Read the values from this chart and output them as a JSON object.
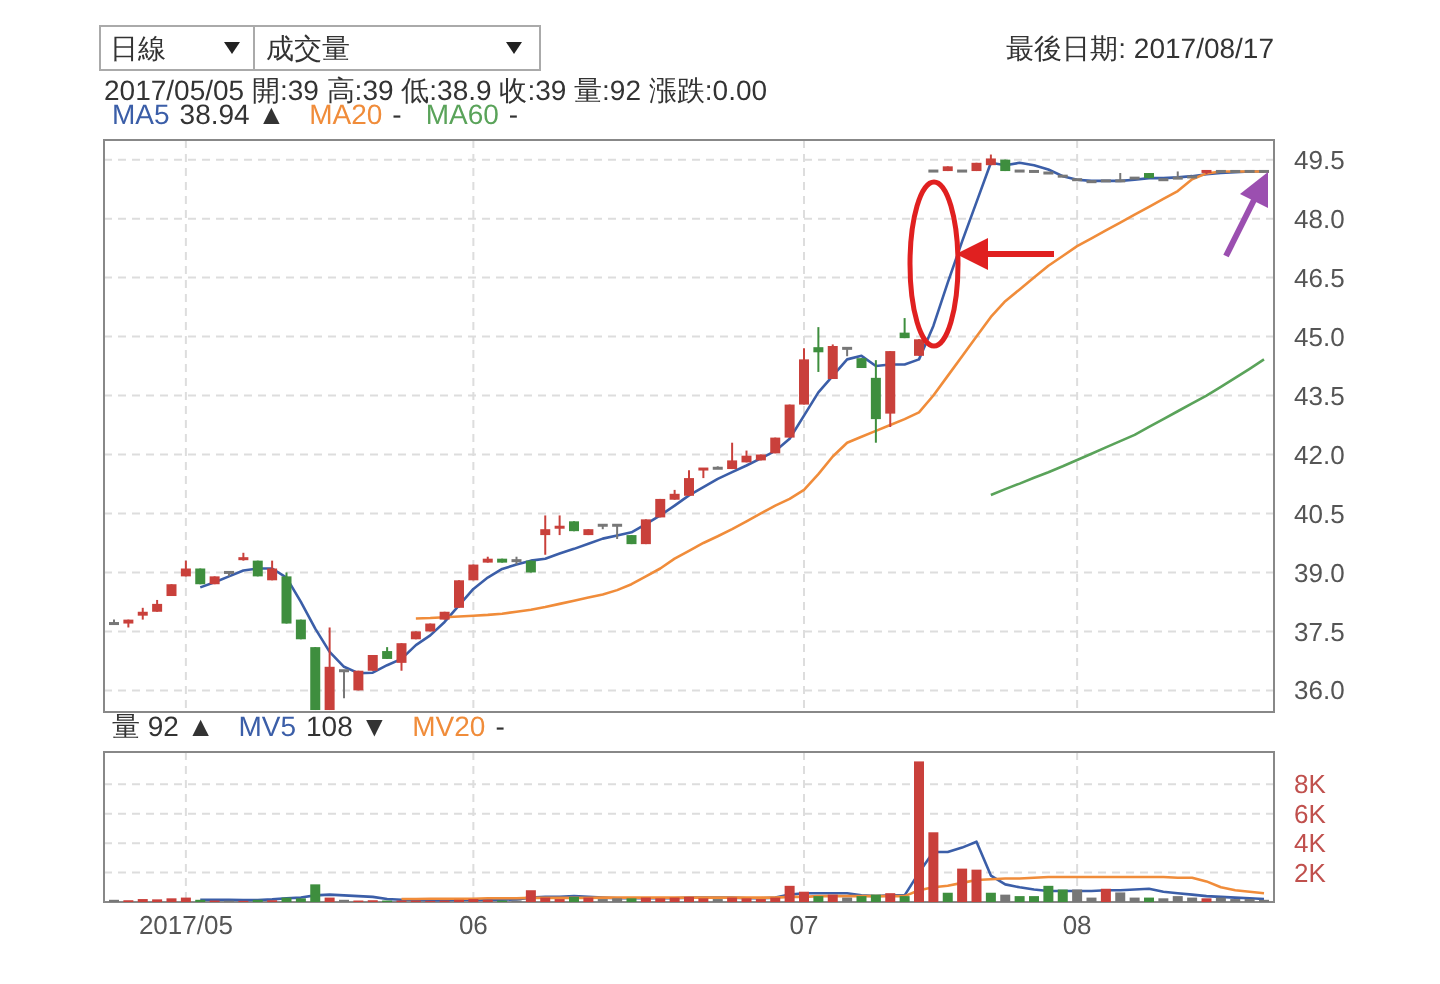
{
  "chart_data": [
    {
      "type": "candlestick",
      "categories": [
        null,
        null,
        null,
        null,
        null,
        "2017/05",
        null,
        null,
        null,
        null,
        null,
        null,
        null,
        null,
        null,
        null,
        null,
        null,
        null,
        null,
        null,
        null,
        null,
        null,
        null,
        "06",
        null,
        null,
        null,
        null,
        null,
        null,
        null,
        null,
        null,
        null,
        null,
        null,
        null,
        null,
        null,
        null,
        null,
        null,
        null,
        null,
        null,
        null,
        "07",
        null,
        null,
        null,
        null,
        null,
        null,
        null,
        null,
        null,
        null,
        null,
        null,
        null,
        null,
        null,
        null,
        null,
        null,
        "08",
        null,
        null,
        null,
        null,
        null,
        null,
        null,
        null,
        null,
        null,
        null,
        null,
        null
      ],
      "ohlc": [
        [
          37.7,
          37.8,
          37.7,
          37.7
        ],
        [
          37.7,
          37.8,
          37.6,
          37.8
        ],
        [
          37.9,
          38.1,
          37.8,
          38.0
        ],
        [
          38.0,
          38.3,
          38.0,
          38.2
        ],
        [
          38.4,
          38.7,
          38.4,
          38.7
        ],
        [
          38.9,
          39.3,
          38.9,
          39.1
        ],
        [
          39.1,
          39.1,
          38.7,
          38.7
        ],
        [
          38.7,
          38.9,
          38.7,
          38.9
        ],
        [
          39.0,
          39.0,
          38.9,
          39.0
        ],
        [
          39.3,
          39.5,
          39.3,
          39.35
        ],
        [
          39.3,
          39.3,
          38.9,
          38.9
        ],
        [
          38.8,
          39.3,
          38.8,
          39.1
        ],
        [
          38.9,
          39.0,
          37.7,
          37.7
        ],
        [
          37.8,
          37.8,
          37.3,
          37.3
        ],
        [
          37.1,
          37.1,
          35.5,
          35.5
        ],
        [
          35.5,
          37.6,
          35.5,
          36.6
        ],
        [
          36.5,
          36.5,
          35.8,
          36.5
        ],
        [
          36.0,
          36.5,
          36.0,
          36.5
        ],
        [
          36.5,
          36.9,
          36.5,
          36.9
        ],
        [
          37.0,
          37.1,
          36.8,
          36.8
        ],
        [
          36.7,
          37.2,
          36.5,
          37.2
        ],
        [
          37.3,
          37.5,
          37.3,
          37.5
        ],
        [
          37.5,
          37.7,
          37.5,
          37.7
        ],
        [
          37.8,
          38.0,
          37.8,
          38.0
        ],
        [
          38.1,
          38.8,
          38.1,
          38.8
        ],
        [
          38.8,
          39.2,
          38.8,
          39.2
        ],
        [
          39.25,
          39.4,
          39.25,
          39.35
        ],
        [
          39.35,
          39.35,
          39.25,
          39.25
        ],
        [
          39.3,
          39.4,
          39.2,
          39.3
        ],
        [
          39.3,
          39.3,
          39.0,
          39.0
        ],
        [
          39.95,
          40.45,
          39.45,
          40.1
        ],
        [
          40.1,
          40.45,
          39.95,
          40.15
        ],
        [
          40.3,
          40.3,
          40.05,
          40.05
        ],
        [
          39.95,
          40.1,
          39.95,
          40.1
        ],
        [
          40.2,
          40.2,
          40.1,
          40.2
        ],
        [
          40.2,
          40.2,
          39.85,
          40.2
        ],
        [
          39.95,
          39.95,
          39.72,
          39.72
        ],
        [
          39.72,
          40.35,
          39.72,
          40.35
        ],
        [
          40.4,
          40.87,
          40.4,
          40.87
        ],
        [
          40.85,
          41.1,
          40.85,
          41.0
        ],
        [
          40.95,
          41.6,
          40.95,
          41.4
        ],
        [
          41.6,
          41.65,
          41.4,
          41.63
        ],
        [
          41.65,
          41.7,
          41.65,
          41.65
        ],
        [
          41.63,
          42.3,
          41.63,
          41.85
        ],
        [
          41.8,
          42.1,
          41.8,
          41.97
        ],
        [
          41.85,
          42.0,
          41.85,
          42.0
        ],
        [
          42.03,
          42.43,
          42.03,
          42.43
        ],
        [
          42.43,
          43.27,
          42.43,
          43.27
        ],
        [
          43.27,
          44.7,
          43.27,
          44.42
        ],
        [
          44.73,
          45.24,
          44.1,
          44.6
        ],
        [
          43.92,
          44.8,
          43.92,
          44.76
        ],
        [
          44.7,
          44.7,
          44.5,
          44.7
        ],
        [
          44.45,
          44.45,
          44.2,
          44.2
        ],
        [
          43.95,
          44.4,
          42.3,
          42.9
        ],
        [
          43.04,
          44.63,
          42.7,
          44.63
        ],
        [
          45.1,
          45.47,
          44.96,
          44.96
        ],
        [
          44.51,
          44.93,
          44.51,
          44.93
        ],
        [
          49.21,
          49.21,
          49.21,
          49.21
        ],
        [
          49.21,
          49.33,
          49.21,
          49.33
        ],
        [
          49.21,
          49.21,
          49.21,
          49.21
        ],
        [
          49.21,
          49.42,
          49.21,
          49.42
        ],
        [
          49.36,
          49.63,
          49.36,
          49.53
        ],
        [
          49.5,
          49.5,
          49.21,
          49.21
        ],
        [
          49.21,
          49.21,
          49.21,
          49.21
        ],
        [
          49.2,
          49.2,
          49.2,
          49.2
        ],
        [
          49.16,
          49.16,
          49.16,
          49.16
        ],
        [
          49.08,
          49.08,
          49.08,
          49.08
        ],
        [
          48.99,
          48.99,
          48.99,
          48.99
        ],
        [
          48.94,
          48.94,
          48.94,
          48.94
        ],
        [
          48.96,
          48.96,
          48.96,
          48.96
        ],
        [
          48.96,
          49.16,
          48.96,
          48.96
        ],
        [
          49.03,
          49.03,
          49.03,
          49.03
        ],
        [
          49.16,
          49.16,
          49.03,
          49.03
        ],
        [
          48.99,
          48.99,
          48.99,
          48.99
        ],
        [
          49.03,
          49.2,
          49.03,
          49.03
        ],
        [
          49.06,
          49.06,
          49.06,
          49.06
        ],
        [
          49.13,
          49.2,
          49.13,
          49.2
        ],
        [
          49.2,
          49.2,
          49.2,
          49.2
        ],
        [
          49.2,
          49.2,
          49.2,
          49.2
        ],
        [
          49.2,
          49.2,
          49.2,
          49.2
        ],
        [
          49.2,
          49.2,
          49.2,
          49.2
        ]
      ],
      "colors": [
        "#777777",
        "#c9403b",
        "#c9403b",
        "#c9403b",
        "#c9403b",
        "#c9403b",
        "#3e8e3e",
        "#c9403b",
        "#777777",
        "#c9403b",
        "#3e8e3e",
        "#c9403b",
        "#3e8e3e",
        "#3e8e3e",
        "#3e8e3e",
        "#c9403b",
        "#777777",
        "#c9403b",
        "#c9403b",
        "#3e8e3e",
        "#c9403b",
        "#c9403b",
        "#c9403b",
        "#c9403b",
        "#c9403b",
        "#c9403b",
        "#c9403b",
        "#3e8e3e",
        "#777777",
        "#3e8e3e",
        "#c9403b",
        "#c9403b",
        "#3e8e3e",
        "#c9403b",
        "#777777",
        "#777777",
        "#3e8e3e",
        "#c9403b",
        "#c9403b",
        "#c9403b",
        "#c9403b",
        "#c9403b",
        "#777777",
        "#c9403b",
        "#c9403b",
        "#c9403b",
        "#c9403b",
        "#c9403b",
        "#c9403b",
        "#3e8e3e",
        "#c9403b",
        "#777777",
        "#3e8e3e",
        "#3e8e3e",
        "#c9403b",
        "#3e8e3e",
        "#c9403b",
        "#777777",
        "#c9403b",
        "#777777",
        "#c9403b",
        "#c9403b",
        "#3e8e3e",
        "#777777",
        "#777777",
        "#777777",
        "#777777",
        "#777777",
        "#777777",
        "#777777",
        "#777777",
        "#777777",
        "#3e8e3e",
        "#777777",
        "#777777",
        "#777777",
        "#c9403b",
        "#777777",
        "#777777",
        "#777777",
        "#777777"
      ],
      "series": [
        {
          "name": "MA5",
          "type": "line",
          "color": "#3b5ea8",
          "values": [
            null,
            null,
            null,
            null,
            null,
            null,
            38.62,
            38.75,
            38.9,
            39.05,
            39.1,
            39.1,
            38.87,
            38.25,
            37.57,
            36.98,
            36.6,
            36.44,
            36.45,
            36.64,
            36.8,
            37.15,
            37.4,
            37.74,
            38.16,
            38.58,
            38.87,
            39.09,
            39.2,
            39.3,
            39.35,
            39.48,
            39.6,
            39.73,
            39.86,
            39.94,
            40.02,
            40.23,
            40.45,
            40.7,
            40.96,
            41.17,
            41.38,
            41.55,
            41.72,
            41.9,
            42.09,
            42.4,
            42.99,
            43.58,
            44.0,
            44.42,
            44.51,
            44.25,
            44.29,
            44.29,
            44.42,
            45.27,
            46.37,
            47.42,
            48.42,
            49.42,
            49.36,
            49.42,
            49.36,
            49.25,
            49.08,
            48.99,
            48.96,
            48.96,
            48.96,
            48.99,
            49.03,
            49.03,
            49.05,
            49.08,
            49.13,
            49.16,
            49.18,
            49.2,
            49.2
          ]
        },
        {
          "name": "MA20",
          "type": "line",
          "color": "#f08c3a",
          "values": [
            null,
            null,
            null,
            null,
            null,
            null,
            null,
            null,
            null,
            null,
            null,
            null,
            null,
            null,
            null,
            null,
            null,
            null,
            null,
            null,
            null,
            37.83,
            37.84,
            37.86,
            37.88,
            37.9,
            37.92,
            37.95,
            38.0,
            38.05,
            38.12,
            38.2,
            38.28,
            38.36,
            38.44,
            38.55,
            38.7,
            38.9,
            39.1,
            39.35,
            39.55,
            39.75,
            39.92,
            40.1,
            40.3,
            40.5,
            40.7,
            40.87,
            41.1,
            41.5,
            41.95,
            42.3,
            42.45,
            42.6,
            42.75,
            42.9,
            43.07,
            43.5,
            44.0,
            44.5,
            45.0,
            45.5,
            45.9,
            46.2,
            46.5,
            46.8,
            47.05,
            47.3,
            47.5,
            47.7,
            47.9,
            48.1,
            48.3,
            48.5,
            48.7,
            49.0,
            49.15,
            49.2,
            49.2,
            49.2,
            49.2
          ]
        },
        {
          "name": "MA60",
          "type": "line",
          "color": "#5aa35a",
          "values": [
            null,
            null,
            null,
            null,
            null,
            null,
            null,
            null,
            null,
            null,
            null,
            null,
            null,
            null,
            null,
            null,
            null,
            null,
            null,
            null,
            null,
            null,
            null,
            null,
            null,
            null,
            null,
            null,
            null,
            null,
            null,
            null,
            null,
            null,
            null,
            null,
            null,
            null,
            null,
            null,
            null,
            null,
            null,
            null,
            null,
            null,
            null,
            null,
            null,
            null,
            null,
            null,
            null,
            null,
            null,
            null,
            null,
            null,
            null,
            null,
            null,
            40.97,
            41.12,
            41.26,
            41.41,
            41.55,
            41.7,
            41.86,
            42.02,
            42.18,
            42.34,
            42.5,
            42.7,
            42.9,
            43.1,
            43.3,
            43.5,
            43.72,
            43.95,
            44.18,
            44.42
          ]
        }
      ],
      "ylim": [
        35.45,
        50.0
      ],
      "yticks": [
        {
          "value": 36,
          "label": "36.0"
        },
        37.5,
        {
          "value": 39,
          "label": "39.0"
        },
        40.5,
        {
          "value": 42,
          "label": "42.0"
        },
        43.5,
        {
          "value": 45,
          "label": "45.0"
        },
        46.5,
        {
          "value": 48,
          "label": "48.0"
        },
        49.5
      ],
      "grid": true,
      "legend": "top left",
      "tick_labels": "y",
      "annotations": [
        "日線",
        "成交量",
        "最後日期: 2017/08/17",
        "2017/05/05 開:39 高:39 低:38.9 收:39 量:92 漲跌:0.00",
        "38.94 ▲",
        "-",
        "-"
      ]
    },
    {
      "type": "bar",
      "categories": [
        null,
        null,
        null,
        null,
        null,
        "2017/05",
        null,
        null,
        null,
        null,
        null,
        null,
        null,
        null,
        null,
        null,
        null,
        null,
        null,
        null,
        null,
        null,
        null,
        null,
        null,
        "06",
        null,
        null,
        null,
        null,
        null,
        null,
        null,
        null,
        null,
        null,
        null,
        null,
        null,
        null,
        null,
        null,
        null,
        null,
        null,
        null,
        null,
        null,
        "07",
        null,
        null,
        null,
        null,
        null,
        null,
        null,
        null,
        null,
        null,
        null,
        null,
        null,
        null,
        null,
        null,
        null,
        null,
        "08",
        null,
        null,
        null,
        null,
        null,
        null,
        null,
        null,
        null,
        null,
        null,
        null,
        null
      ],
      "values": [
        150,
        120,
        200,
        180,
        250,
        300,
        150,
        100,
        92,
        80,
        150,
        120,
        300,
        250,
        1200,
        300,
        150,
        100,
        120,
        100,
        100,
        100,
        80,
        100,
        150,
        200,
        150,
        100,
        100,
        800,
        300,
        200,
        350,
        300,
        200,
        250,
        250,
        300,
        250,
        300,
        350,
        250,
        200,
        300,
        250,
        200,
        300,
        1100,
        700,
        400,
        500,
        300,
        400,
        500,
        600,
        400,
        9560,
        4740,
        630,
        2270,
        2200,
        630,
        500,
        400,
        400,
        1100,
        850,
        850,
        300,
        900,
        650,
        300,
        300,
        250,
        400,
        300,
        250,
        300,
        200,
        200,
        150
      ],
      "colors": [
        "#777777",
        "#c9403b",
        "#c9403b",
        "#c9403b",
        "#c9403b",
        "#c9403b",
        "#3e8e3e",
        "#c9403b",
        "#777777",
        "#c9403b",
        "#3e8e3e",
        "#c9403b",
        "#3e8e3e",
        "#3e8e3e",
        "#3e8e3e",
        "#c9403b",
        "#777777",
        "#c9403b",
        "#c9403b",
        "#3e8e3e",
        "#c9403b",
        "#c9403b",
        "#c9403b",
        "#c9403b",
        "#c9403b",
        "#c9403b",
        "#c9403b",
        "#3e8e3e",
        "#777777",
        "#c9403b",
        "#c9403b",
        "#c9403b",
        "#3e8e3e",
        "#c9403b",
        "#777777",
        "#777777",
        "#3e8e3e",
        "#c9403b",
        "#c9403b",
        "#c9403b",
        "#c9403b",
        "#c9403b",
        "#777777",
        "#c9403b",
        "#c9403b",
        "#c9403b",
        "#c9403b",
        "#c9403b",
        "#c9403b",
        "#3e8e3e",
        "#c9403b",
        "#777777",
        "#3e8e3e",
        "#3e8e3e",
        "#c9403b",
        "#3e8e3e",
        "#c9403b",
        "#c9403b",
        "#3e8e3e",
        "#c9403b",
        "#c9403b",
        "#3e8e3e",
        "#777777",
        "#3e8e3e",
        "#3e8e3e",
        "#3e8e3e",
        "#3e8e3e",
        "#777777",
        "#777777",
        "#c9403b",
        "#777777",
        "#777777",
        "#3e8e3e",
        "#777777",
        "#777777",
        "#777777",
        "#c9403b",
        "#777777",
        "#777777",
        "#777777",
        "#777777"
      ],
      "series": [
        {
          "name": "MV5",
          "type": "line",
          "color": "#3b5ea8",
          "values": [
            null,
            null,
            null,
            null,
            null,
            null,
            150,
            150,
            150,
            140,
            140,
            180,
            250,
            300,
            450,
            500,
            450,
            400,
            350,
            200,
            150,
            150,
            120,
            120,
            150,
            150,
            150,
            150,
            180,
            300,
            350,
            350,
            400,
            350,
            300,
            250,
            250,
            250,
            250,
            250,
            300,
            300,
            300,
            300,
            250,
            250,
            300,
            500,
            600,
            600,
            600,
            600,
            450,
            400,
            450,
            450,
            2000,
            3400,
            3400,
            3700,
            4100,
            1800,
            1200,
            1000,
            850,
            750,
            750,
            750,
            750,
            800,
            800,
            850,
            900,
            700,
            600,
            500,
            400,
            350,
            300,
            250,
            200
          ]
        },
        {
          "name": "MV20",
          "type": "line",
          "color": "#f08c3a",
          "values": [
            null,
            null,
            null,
            null,
            null,
            null,
            null,
            null,
            null,
            null,
            null,
            null,
            null,
            null,
            null,
            null,
            null,
            null,
            null,
            null,
            200,
            200,
            220,
            220,
            220,
            220,
            250,
            250,
            250,
            280,
            280,
            280,
            280,
            280,
            300,
            300,
            300,
            300,
            300,
            300,
            300,
            300,
            300,
            300,
            300,
            300,
            300,
            350,
            350,
            400,
            400,
            400,
            400,
            400,
            400,
            400,
            800,
            1000,
            1100,
            1300,
            1500,
            1550,
            1600,
            1600,
            1650,
            1700,
            1700,
            1700,
            1700,
            1700,
            1700,
            1700,
            1700,
            1700,
            1650,
            1650,
            1400,
            1000,
            800,
            700,
            600
          ]
        }
      ],
      "ylim": [
        0,
        10200
      ],
      "yticks": [
        {
          "value": 2000,
          "label": "2K"
        },
        {
          "value": 4000,
          "label": "4K"
        },
        {
          "value": 6000,
          "label": "6K"
        },
        {
          "value": 8000,
          "label": "8K"
        }
      ],
      "grid": true,
      "legend": "top left",
      "annotations": [
        "量 92 ▲",
        "108 ▼",
        "-"
      ]
    }
  ]
}
